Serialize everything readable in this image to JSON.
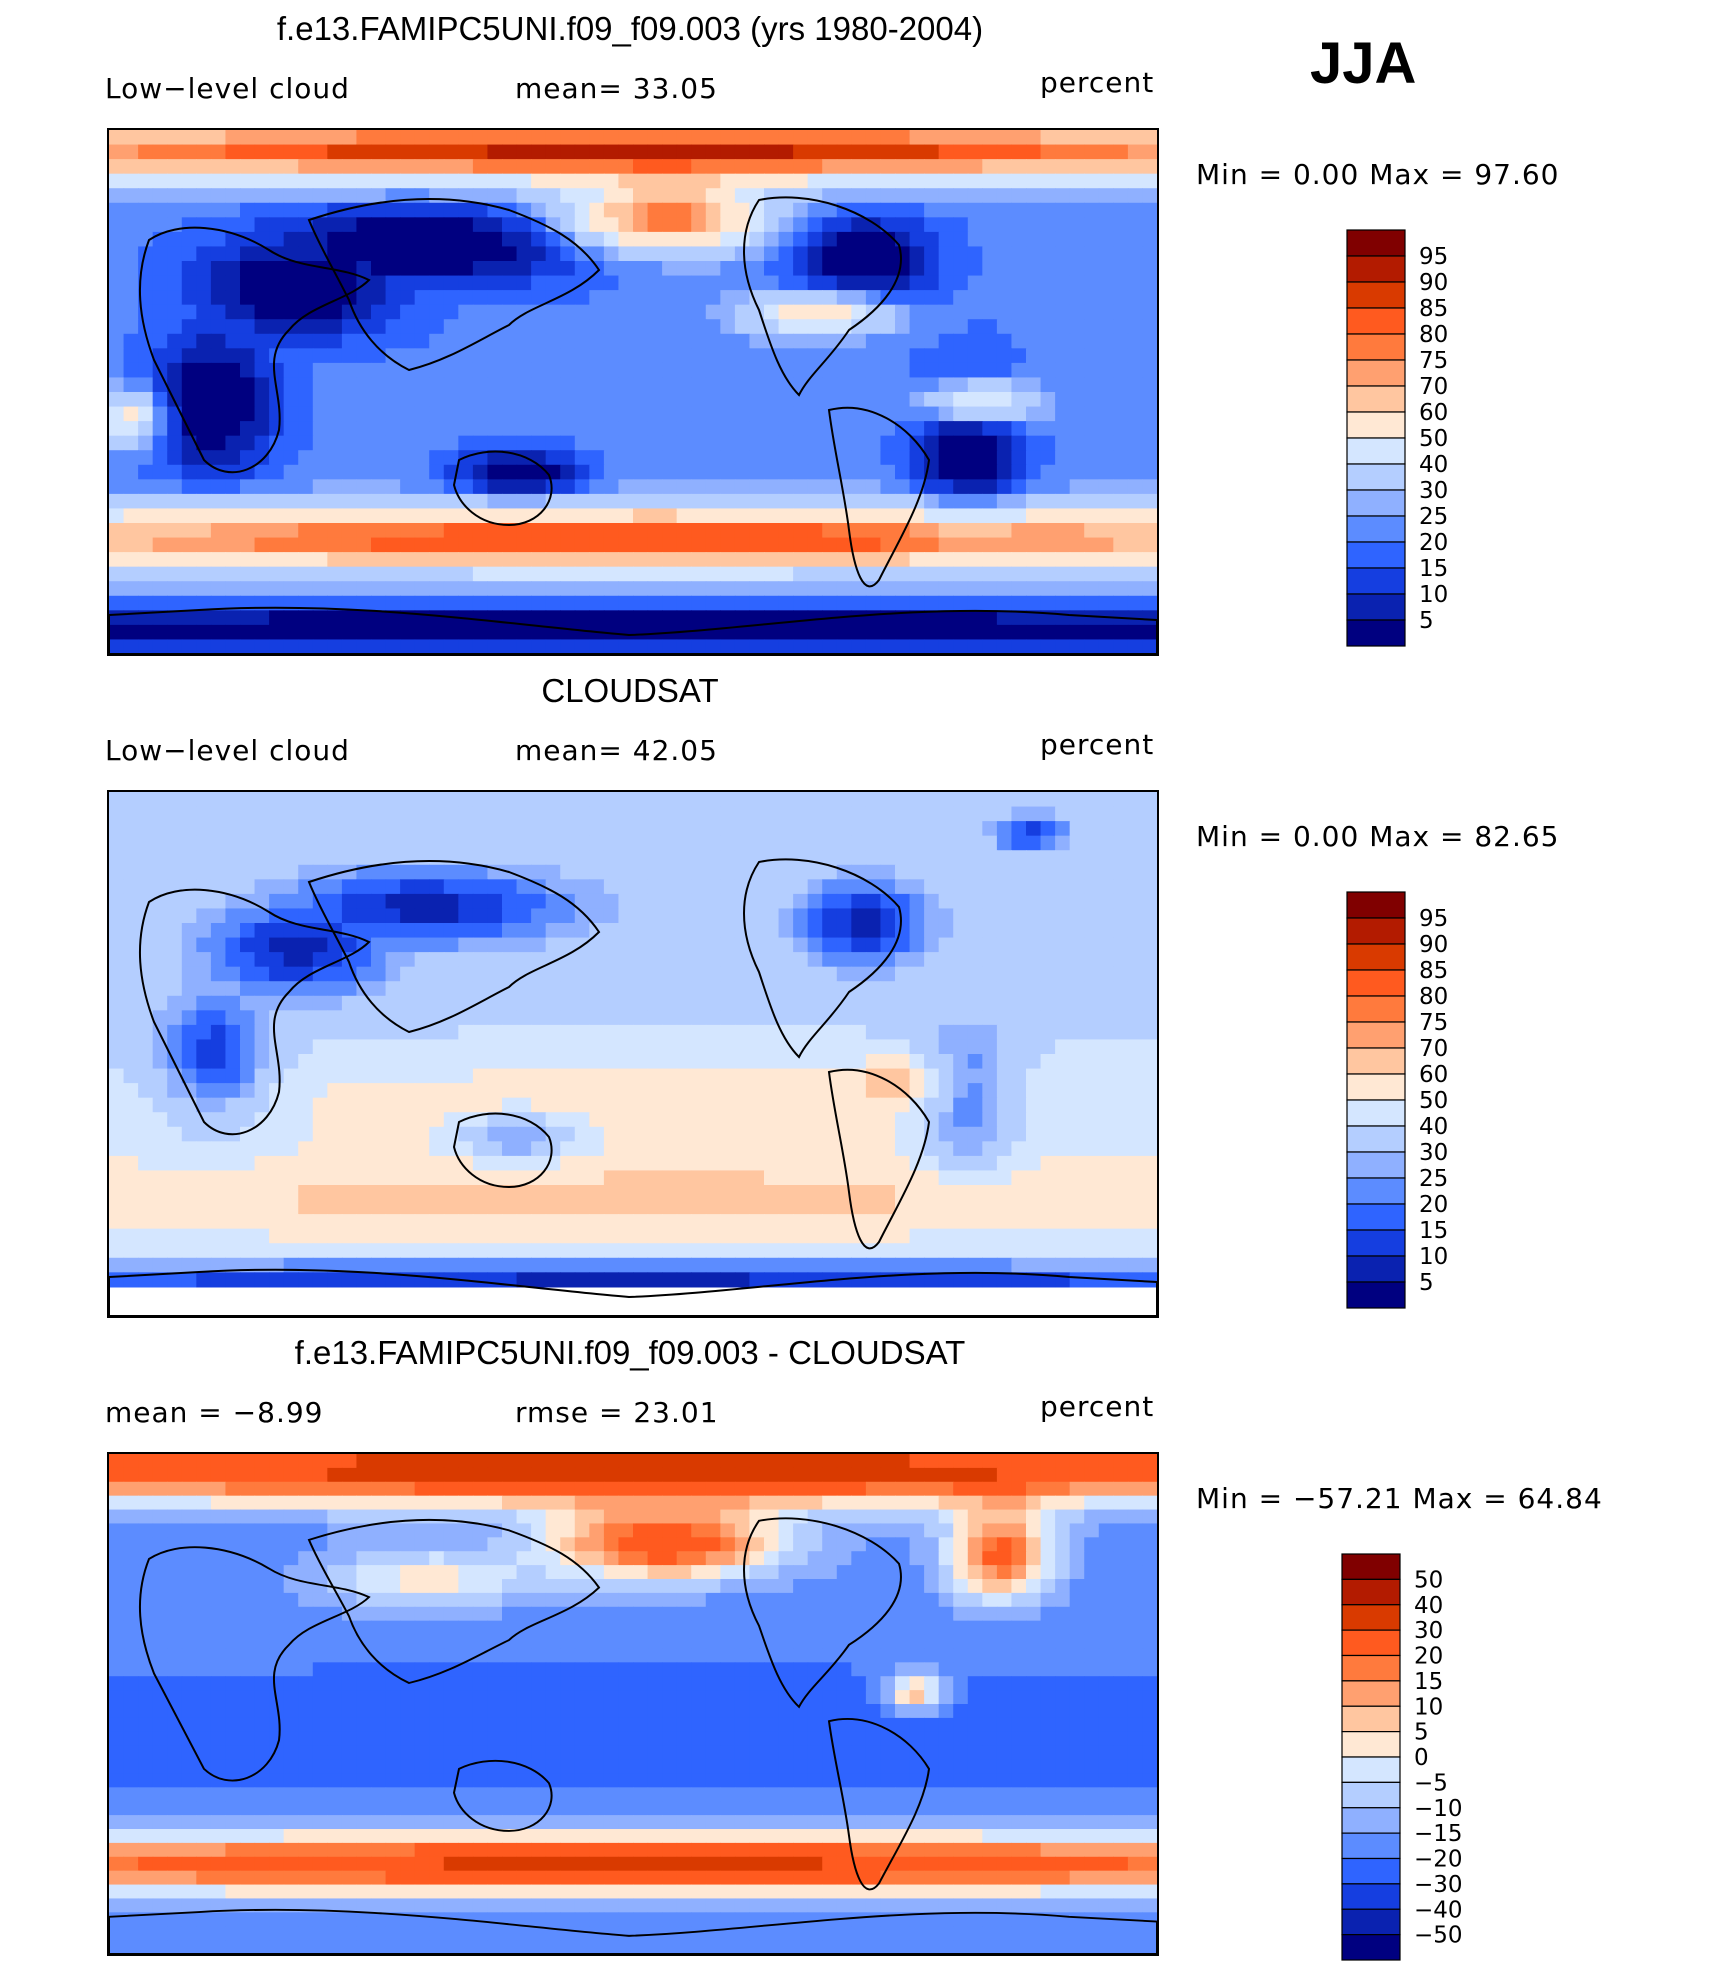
{
  "season": "JJA",
  "panels": [
    {
      "title": "f.e13.FAMIPC5UNI.f09_f09.003 (yrs 1980-2004)",
      "left_label": "Low−level cloud",
      "center_label": "mean=   33.05",
      "units": "percent",
      "minmax": "Min  =     0.00  Max  =    97.60",
      "colorbar_labels": [
        "95",
        "90",
        "85",
        "80",
        "75",
        "70",
        "60",
        "50",
        "40",
        "30",
        "25",
        "20",
        "15",
        "10",
        "5"
      ],
      "field": "model"
    },
    {
      "title": "CLOUDSAT",
      "left_label": "Low−level cloud",
      "center_label": "mean=   42.05",
      "units": "percent",
      "minmax": "Min  =     0.00  Max  =    82.65",
      "colorbar_labels": [
        "95",
        "90",
        "85",
        "80",
        "75",
        "70",
        "60",
        "50",
        "40",
        "30",
        "25",
        "20",
        "15",
        "10",
        "5"
      ],
      "field": "obs"
    },
    {
      "title": "f.e13.FAMIPC5UNI.f09_f09.003 - CLOUDSAT",
      "left_label": "mean  =    −8.99",
      "center_label": "rmse  =    23.01",
      "units": "percent",
      "minmax": "Min  =  −57.21  Max  =    64.84",
      "colorbar_labels": [
        "50",
        "40",
        "30",
        "20",
        "15",
        "10",
        "5",
        "0",
        "−5",
        "−10",
        "−15",
        "−20",
        "−30",
        "−40",
        "−50"
      ],
      "field": "diff"
    }
  ],
  "colors": {
    "scale_16": [
      "#800000",
      "#b31b00",
      "#d93a00",
      "#ff5a1f",
      "#ff7a3d",
      "#ffa070",
      "#ffc6a0",
      "#ffe8d4",
      "#d4e6ff",
      "#b4ceff",
      "#8fb0ff",
      "#5c8cff",
      "#2f64ff",
      "#153ee0",
      "#0a22b0",
      "#000080"
    ]
  }
}
